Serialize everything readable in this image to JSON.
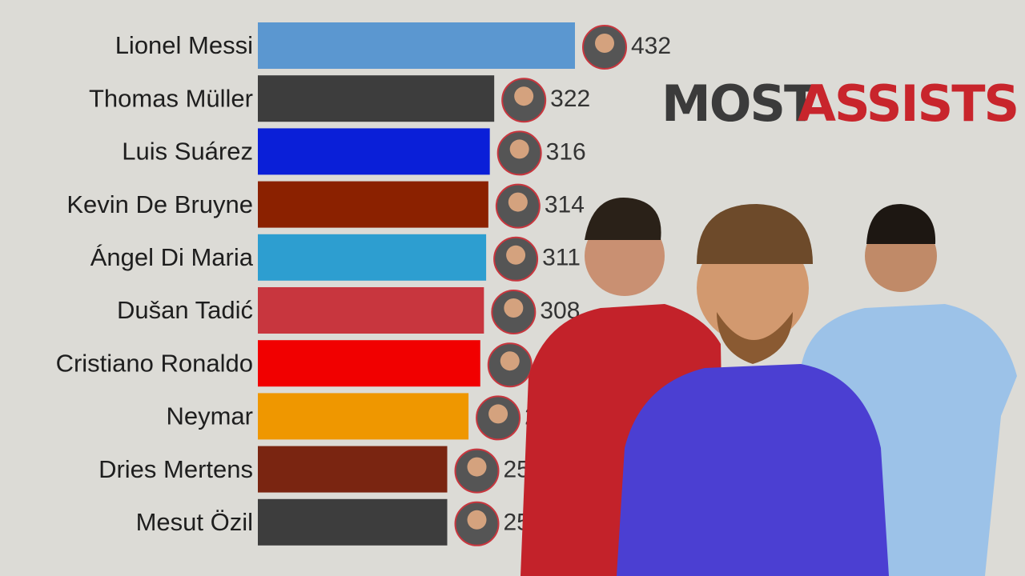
{
  "chart_data": {
    "type": "bar",
    "orientation": "horizontal",
    "title": [
      "MOST",
      "ASSISTS"
    ],
    "title_colors": [
      "#3b3b3b",
      "#c8252c"
    ],
    "categories": [
      "Lionel Messi",
      "Thomas Müller",
      "Luis Suárez",
      "Kevin De Bruyne",
      "Ángel Di Maria",
      "Dušan Tadić",
      "Cristiano Ronaldo",
      "Neymar",
      "Dries Mertens",
      "Mesut Özil"
    ],
    "values": [
      432,
      322,
      316,
      314,
      311,
      308,
      303,
      287,
      258,
      258
    ],
    "colors": [
      "#5b97d0",
      "#3d3d3d",
      "#0a1fd8",
      "#8b2100",
      "#2d9ed0",
      "#c8363e",
      "#f10000",
      "#ef9700",
      "#7a2511",
      "#3d3d3d"
    ]
  }
}
